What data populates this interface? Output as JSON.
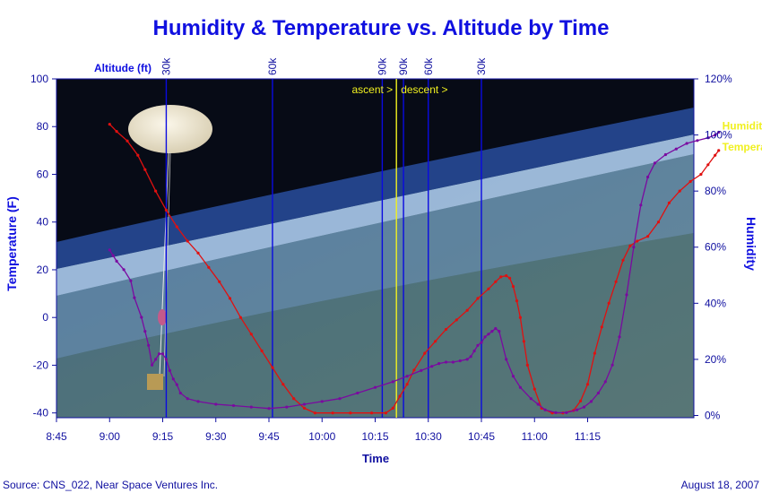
{
  "chart_data": {
    "type": "line",
    "title": "Humidity & Temperature vs. Altitude by Time",
    "xlabel": "Time",
    "ylabel_left": "Temperature (F)",
    "ylabel_right": "Humidity",
    "altitude_label": "Altitude (ft)",
    "source": "Source: CNS_022, Near Space Ventures Inc.",
    "date": "August 18, 2007",
    "x_ticks": [
      "8:45",
      "9:00",
      "9:15",
      "9:30",
      "9:45",
      "10:00",
      "10:15",
      "10:30",
      "10:45",
      "11:00",
      "11:15"
    ],
    "x_range_minutes": [
      525,
      705
    ],
    "y_left_ticks": [
      "-40",
      "-20",
      "0",
      "20",
      "40",
      "60",
      "80",
      "100"
    ],
    "y_left_range": [
      -42,
      100
    ],
    "y_right_ticks": [
      "0%",
      "20%",
      "40%",
      "60%",
      "80%",
      "100%",
      "120%"
    ],
    "y_right_range": [
      -0.8,
      120
    ],
    "grid": false,
    "background": "photo of Earth's curved horizon from near space with a high-altitude balloon and payload",
    "altitude_markers": [
      {
        "label": "30k",
        "minute": 556
      },
      {
        "label": "60k",
        "minute": 586
      },
      {
        "label": "90k",
        "minute": 617
      },
      {
        "label": "90k",
        "minute": 623
      },
      {
        "label": "60k",
        "minute": 630
      },
      {
        "label": "30k",
        "minute": 645
      }
    ],
    "burst_marker_minute": 621,
    "phase_labels": {
      "ascent": "ascent >",
      "descent": "descent >"
    },
    "series": [
      {
        "name": "Temperature",
        "axis": "left",
        "color": "#e01010",
        "points": [
          [
            540,
            81
          ],
          [
            542,
            78
          ],
          [
            545,
            74
          ],
          [
            548,
            68
          ],
          [
            550,
            62
          ],
          [
            553,
            53
          ],
          [
            556,
            45
          ],
          [
            559,
            38
          ],
          [
            562,
            32
          ],
          [
            565,
            27
          ],
          [
            568,
            21
          ],
          [
            571,
            15
          ],
          [
            574,
            8
          ],
          [
            577,
            0
          ],
          [
            580,
            -7
          ],
          [
            583,
            -14
          ],
          [
            586,
            -21
          ],
          [
            589,
            -28
          ],
          [
            592,
            -34
          ],
          [
            595,
            -38
          ],
          [
            598,
            -40
          ],
          [
            603,
            -40
          ],
          [
            608,
            -40
          ],
          [
            614,
            -40
          ],
          [
            618,
            -40
          ],
          [
            620,
            -38
          ],
          [
            622,
            -33
          ],
          [
            624,
            -28
          ],
          [
            626,
            -22
          ],
          [
            629,
            -15
          ],
          [
            632,
            -10
          ],
          [
            635,
            -5
          ],
          [
            638,
            -1
          ],
          [
            641,
            3
          ],
          [
            644,
            8
          ],
          [
            647,
            12
          ],
          [
            649,
            15
          ],
          [
            650.5,
            17
          ],
          [
            652,
            17.5
          ],
          [
            653,
            16.5
          ],
          [
            654,
            13
          ],
          [
            655,
            7
          ],
          [
            656,
            0
          ],
          [
            657,
            -10
          ],
          [
            658,
            -20
          ],
          [
            660,
            -30
          ],
          [
            662,
            -38
          ],
          [
            665,
            -40
          ],
          [
            668,
            -40
          ],
          [
            671,
            -39
          ],
          [
            673,
            -35
          ],
          [
            675,
            -28
          ],
          [
            677,
            -15
          ],
          [
            679,
            -4
          ],
          [
            681,
            6
          ],
          [
            683,
            15
          ],
          [
            685,
            24
          ],
          [
            687,
            30
          ],
          [
            689,
            32
          ],
          [
            692,
            34
          ],
          [
            695,
            40
          ],
          [
            698,
            48
          ],
          [
            701,
            53
          ],
          [
            704,
            57
          ],
          [
            707,
            60
          ],
          [
            709,
            64
          ],
          [
            711,
            68
          ],
          [
            712,
            70
          ]
        ]
      },
      {
        "name": "Humidity",
        "axis": "right",
        "color": "#7a0aa0",
        "points": [
          [
            540,
            59
          ],
          [
            541,
            57
          ],
          [
            542,
            55
          ],
          [
            544,
            52
          ],
          [
            546,
            48
          ],
          [
            547,
            42
          ],
          [
            549,
            35
          ],
          [
            550,
            30
          ],
          [
            551,
            25
          ],
          [
            552,
            18
          ],
          [
            553,
            20
          ],
          [
            554,
            22
          ],
          [
            555,
            22
          ],
          [
            556,
            20
          ],
          [
            557,
            16
          ],
          [
            558,
            13
          ],
          [
            559,
            11
          ],
          [
            560,
            8
          ],
          [
            562,
            6
          ],
          [
            565,
            5
          ],
          [
            570,
            4
          ],
          [
            575,
            3.5
          ],
          [
            580,
            3
          ],
          [
            585,
            2.5
          ],
          [
            590,
            3
          ],
          [
            595,
            4
          ],
          [
            600,
            5
          ],
          [
            605,
            6
          ],
          [
            610,
            8
          ],
          [
            615,
            10
          ],
          [
            620,
            12
          ],
          [
            624,
            14
          ],
          [
            628,
            16
          ],
          [
            631,
            17.5
          ],
          [
            633,
            18.5
          ],
          [
            635,
            19
          ],
          [
            637,
            19
          ],
          [
            639,
            19.5
          ],
          [
            641,
            20
          ],
          [
            642,
            21
          ],
          [
            643,
            23
          ],
          [
            644,
            25
          ],
          [
            645,
            26
          ],
          [
            646,
            28
          ],
          [
            647,
            29
          ],
          [
            648,
            30
          ],
          [
            649,
            31
          ],
          [
            650,
            30
          ],
          [
            652,
            20
          ],
          [
            654,
            14
          ],
          [
            656,
            10
          ],
          [
            659,
            6
          ],
          [
            661,
            4
          ],
          [
            663,
            2
          ],
          [
            666,
            1
          ],
          [
            669,
            1
          ],
          [
            672,
            2
          ],
          [
            674,
            3
          ],
          [
            676,
            5
          ],
          [
            678,
            8
          ],
          [
            680,
            12
          ],
          [
            682,
            18
          ],
          [
            684,
            28
          ],
          [
            686,
            43
          ],
          [
            688,
            60
          ],
          [
            690,
            75
          ],
          [
            692,
            85
          ],
          [
            694,
            90
          ],
          [
            697,
            93
          ],
          [
            700,
            95
          ],
          [
            703,
            97
          ],
          [
            706,
            98
          ],
          [
            709,
            99
          ],
          [
            711,
            100
          ],
          [
            712,
            101
          ]
        ]
      }
    ]
  }
}
